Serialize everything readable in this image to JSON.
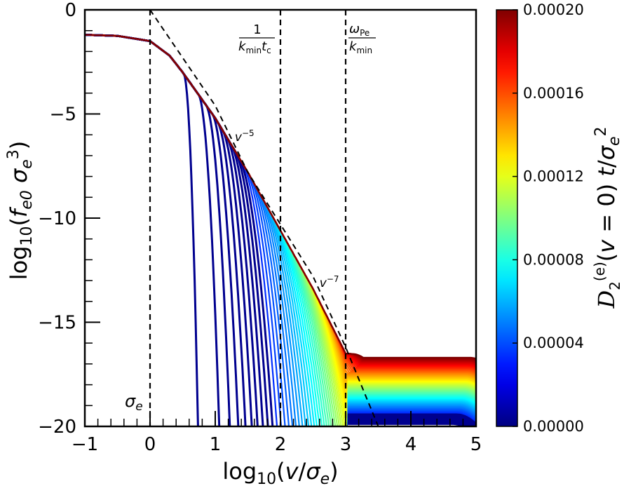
{
  "chart_data": {
    "type": "line",
    "xlabel": "log10(v/σe)",
    "ylabel": "log10(fe0 σe³)",
    "xlim": [
      -1,
      5
    ],
    "ylim": [
      -20,
      0
    ],
    "xticks": [
      -1,
      0,
      1,
      2,
      3,
      4,
      5
    ],
    "yticks": [
      0,
      -5,
      -10,
      -15,
      -20
    ],
    "xtick_labels": [
      "−1",
      "0",
      "1",
      "2",
      "3",
      "4",
      "5"
    ],
    "ytick_labels": [
      "0",
      "−5",
      "−10",
      "−15",
      "−20"
    ],
    "colorbar": {
      "label": "D2(e)(v=0) t/σe²",
      "range": [
        0,
        0.0002
      ],
      "tick_values": [
        0.0002,
        0.00016,
        0.00012,
        8e-05,
        4e-05,
        0
      ],
      "tick_labels": [
        "0.00020",
        "0.00016",
        "0.00012",
        "0.00008",
        "0.00004",
        "0.00000"
      ],
      "colormap": "jet"
    },
    "vlines": [
      {
        "x": 0,
        "label": "σe"
      },
      {
        "x": 2,
        "label": "1/(kmin tc)"
      },
      {
        "x": 3,
        "label": "ωPe/kmin"
      }
    ],
    "asymptote": {
      "x": [
        0,
        0.5,
        1,
        1.5,
        2,
        2.5,
        3,
        3.5
      ],
      "y": [
        0.0,
        -2.3,
        -4.6,
        -7.8,
        -10.3,
        -12.8,
        -16.2,
        -20.0
      ]
    },
    "slope_annotations": [
      {
        "text": "v^−5",
        "x": 1.3,
        "y": -6.3
      },
      {
        "text": "v^−7",
        "x": 2.6,
        "y": -13.3
      }
    ],
    "envelope": {
      "x": [
        -1,
        -0.5,
        0,
        0.3,
        0.5,
        1,
        1.5,
        2,
        2.5,
        3,
        3.5,
        4,
        4.5,
        4.8,
        5
      ],
      "y": [
        -1.2,
        -1.25,
        -1.5,
        -2.2,
        -3.0,
        -5.2,
        -7.8,
        -10.6,
        -13.4,
        -16.5,
        -16.6,
        -16.65,
        -16.75,
        -16.9,
        -17.7
      ]
    },
    "series_parameter_count": 60
  }
}
